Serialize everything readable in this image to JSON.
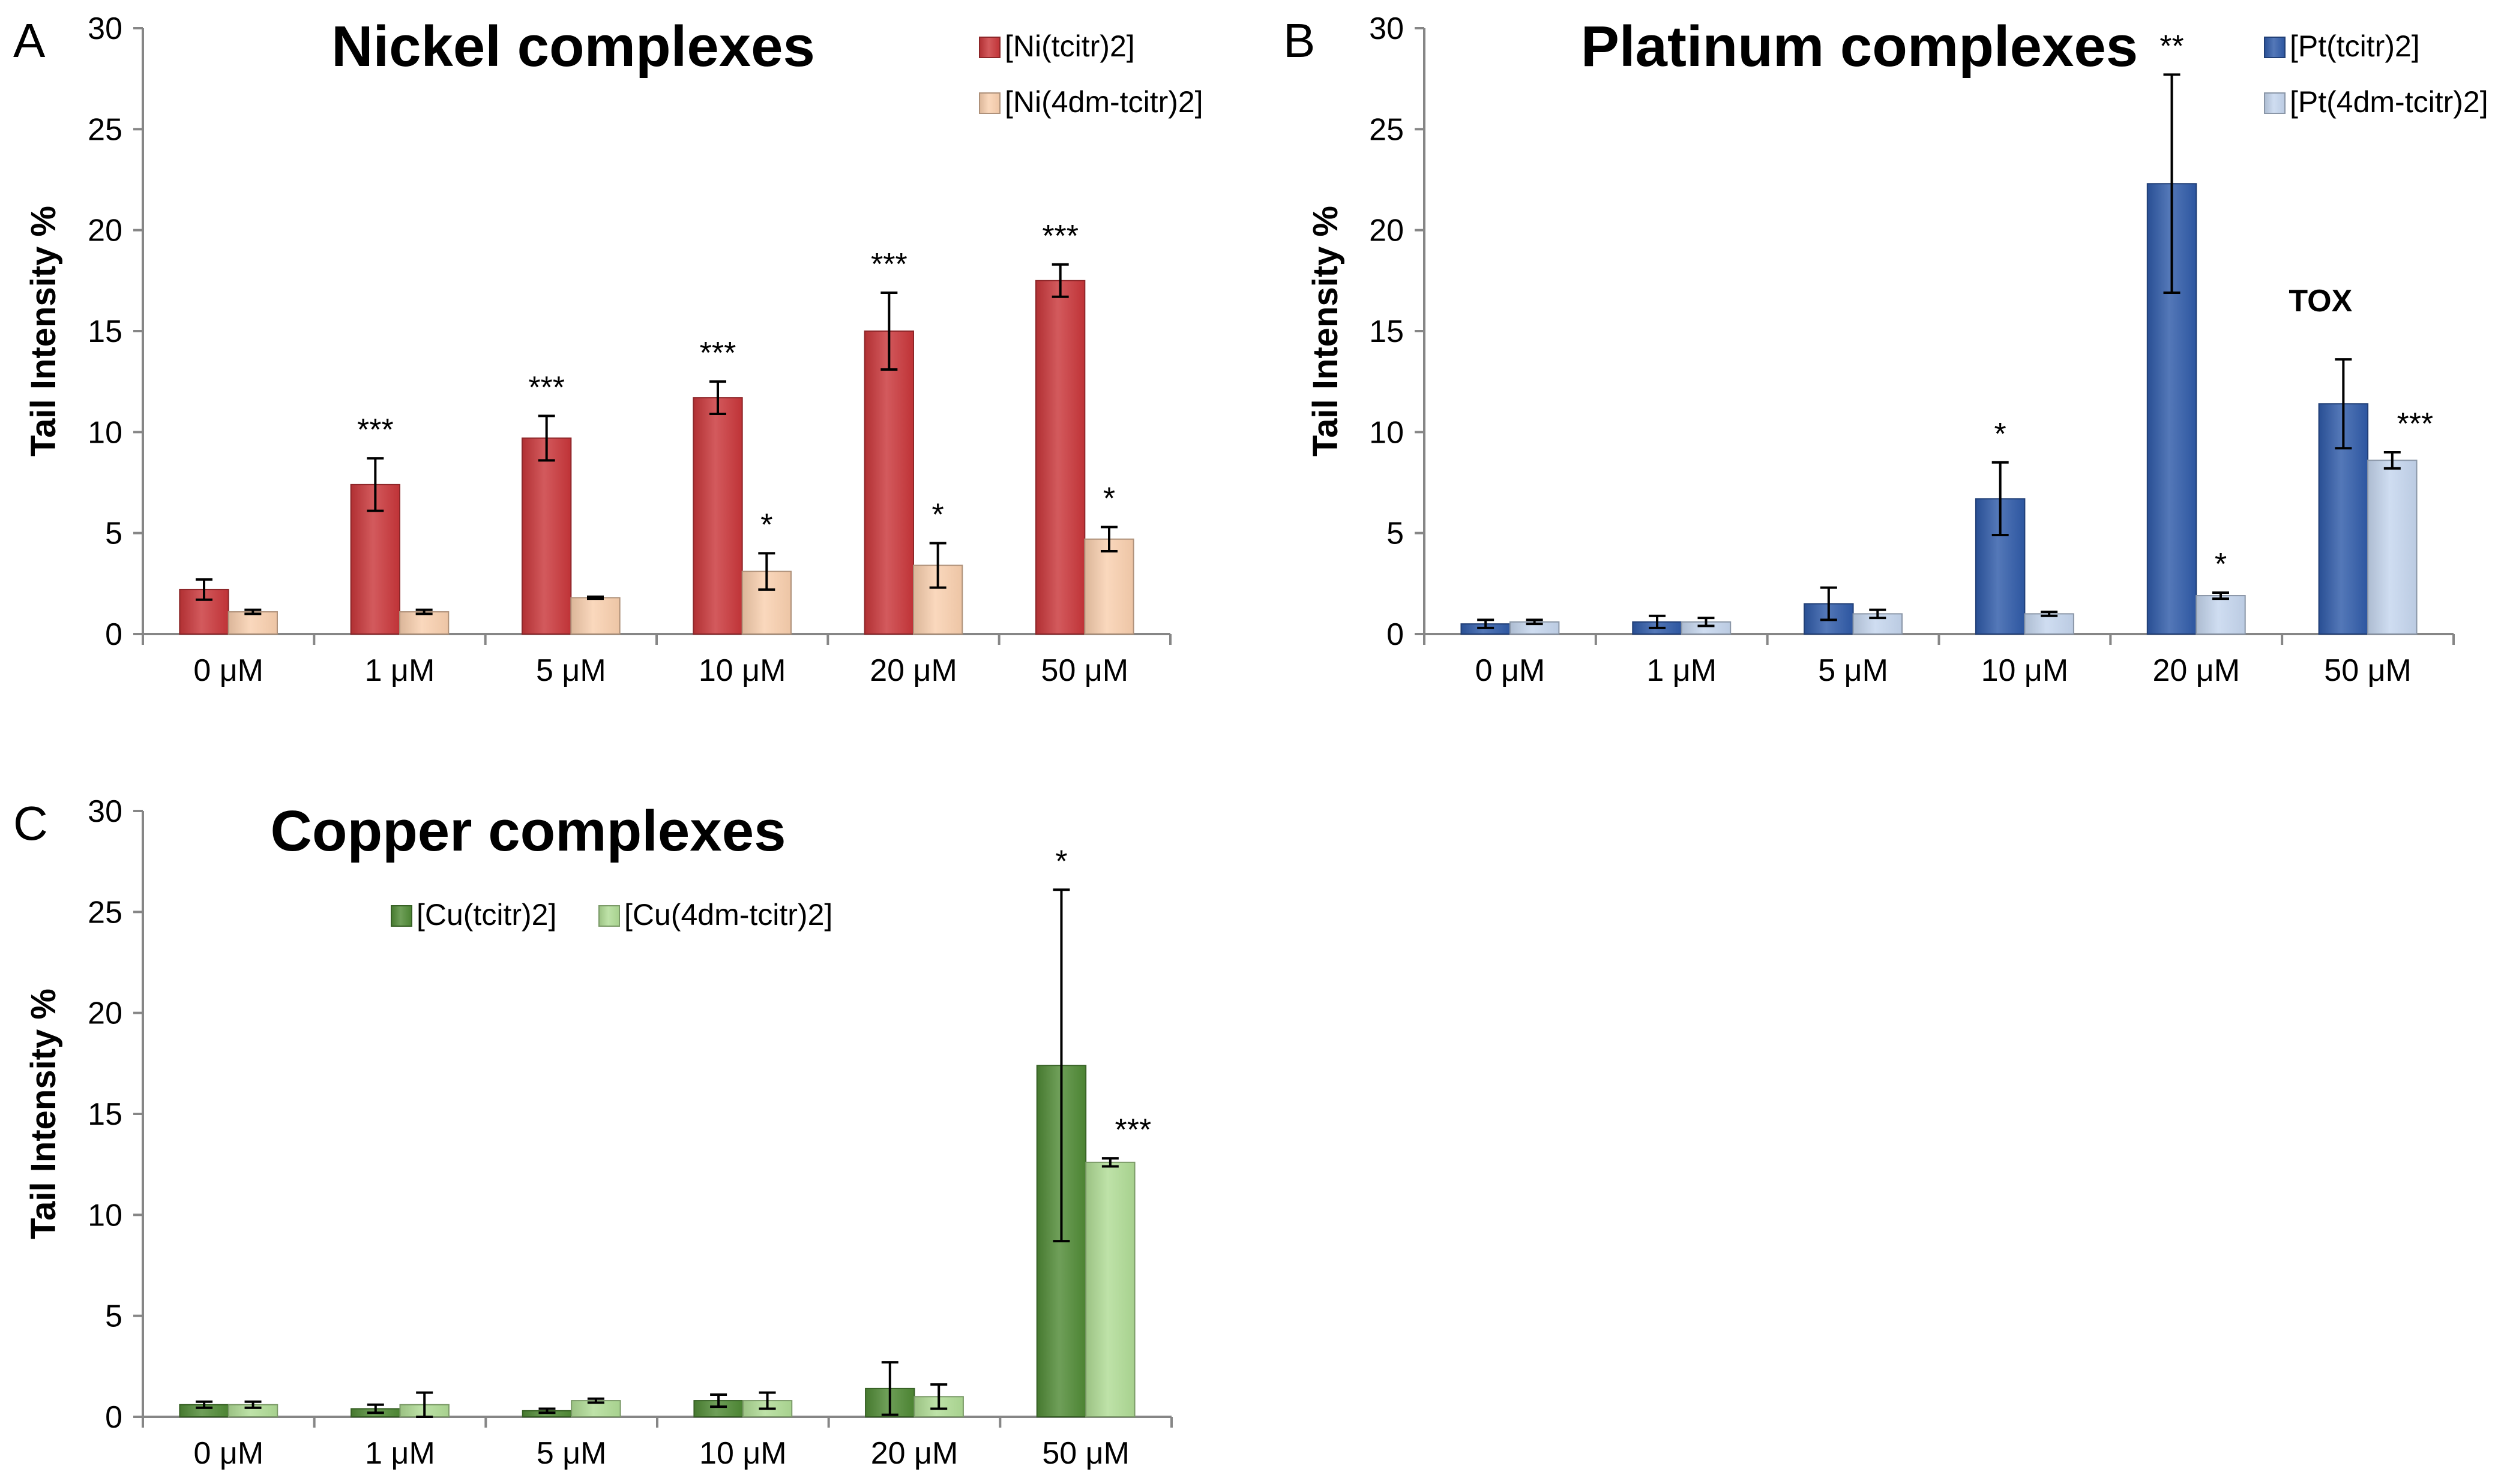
{
  "figure": {
    "panels": [
      "A",
      "B",
      "C"
    ],
    "colors": {
      "ni_dark": "#c9363a",
      "ni_light": "#f9cfae",
      "pt_dark": "#2f5aa8",
      "pt_light": "#c5d6ee",
      "cu_dark": "#4f8a35",
      "cu_light": "#b0dc95"
    }
  },
  "chart_data": [
    {
      "panel": "A",
      "type": "bar",
      "title": "Nickel complexes",
      "xlabel": "",
      "ylabel": "Tail Intensity %",
      "ylim": [
        0,
        30
      ],
      "yticks": [
        "0",
        "5",
        "10",
        "15",
        "20",
        "25",
        "30"
      ],
      "legend_position": "top-right",
      "categories": [
        "0 μM",
        "1 μM",
        "5 μM",
        "10 μM",
        "20 μM",
        "50 μM"
      ],
      "series": [
        {
          "name": "[Ni(tcitr)2]",
          "color": "#c9363a",
          "values": [
            2.2,
            7.4,
            9.7,
            11.7,
            15.0,
            17.5
          ],
          "errors": [
            0.5,
            1.3,
            1.1,
            0.8,
            1.9,
            0.8
          ],
          "significance": [
            "",
            "***",
            "***",
            "***",
            "***",
            "***"
          ]
        },
        {
          "name": "[Ni(4dm-tcitr)2]",
          "color": "#f9cfae",
          "values": [
            1.1,
            1.1,
            1.8,
            3.1,
            3.4,
            4.7
          ],
          "errors": [
            0.1,
            0.1,
            0.05,
            0.9,
            1.1,
            0.6
          ],
          "significance": [
            "",
            "",
            "",
            "*",
            "*",
            "*"
          ]
        }
      ],
      "annotations": []
    },
    {
      "panel": "B",
      "type": "bar",
      "title": "Platinum complexes",
      "xlabel": "",
      "ylabel": "Tail Intensity %",
      "ylim": [
        0,
        30
      ],
      "yticks": [
        "0",
        "5",
        "10",
        "15",
        "20",
        "25",
        "30"
      ],
      "legend_position": "top-right",
      "categories": [
        "0 μM",
        "1 μM",
        "5 μM",
        "10 μM",
        "20 μM",
        "50 μM"
      ],
      "series": [
        {
          "name": "[Pt(tcitr)2]",
          "color": "#2f5aa8",
          "values": [
            0.5,
            0.6,
            1.5,
            6.7,
            22.3,
            11.4
          ],
          "errors": [
            0.2,
            0.3,
            0.8,
            1.8,
            5.4,
            2.2
          ],
          "significance": [
            "",
            "",
            "",
            "*",
            "**",
            ""
          ]
        },
        {
          "name": "[Pt(4dm-tcitr)2]",
          "color": "#c5d6ee",
          "values": [
            0.6,
            0.6,
            1.0,
            1.0,
            1.9,
            8.6
          ],
          "errors": [
            0.1,
            0.2,
            0.2,
            0.1,
            0.15,
            0.4
          ],
          "significance": [
            "",
            "",
            "",
            "",
            "*",
            "***"
          ]
        }
      ],
      "annotations": [
        {
          "text": "TOX",
          "category": "50 μM",
          "series": 0
        }
      ]
    },
    {
      "panel": "C",
      "type": "bar",
      "title": "Copper complexes",
      "xlabel": "",
      "ylabel": "Tail Intensity %",
      "ylim": [
        0,
        30
      ],
      "yticks": [
        "0",
        "5",
        "10",
        "15",
        "20",
        "25",
        "30"
      ],
      "legend_position": "top-left",
      "categories": [
        "0 μM",
        "1 μM",
        "5 μM",
        "10 μM",
        "20 μM",
        "50 μM"
      ],
      "series": [
        {
          "name": "[Cu(tcitr)2]",
          "color": "#4f8a35",
          "values": [
            0.6,
            0.4,
            0.3,
            0.8,
            1.4,
            17.4
          ],
          "errors": [
            0.15,
            0.2,
            0.1,
            0.3,
            1.3,
            8.7
          ],
          "significance": [
            "",
            "",
            "",
            "",
            "",
            "*"
          ]
        },
        {
          "name": "[Cu(4dm-tcitr)2]",
          "color": "#b0dc95",
          "values": [
            0.6,
            0.6,
            0.8,
            0.8,
            1.0,
            12.6
          ],
          "errors": [
            0.15,
            0.6,
            0.1,
            0.4,
            0.6,
            0.2
          ],
          "significance": [
            "",
            "",
            "",
            "",
            "",
            "***"
          ]
        }
      ],
      "annotations": []
    }
  ]
}
